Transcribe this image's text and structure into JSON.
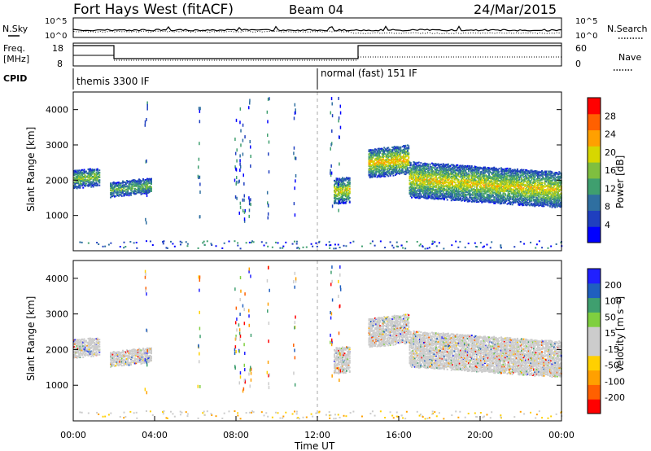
{
  "header": {
    "title": "Fort Hays West (fitACF)",
    "beam": "Beam 04",
    "date": "24/Mar/2015"
  },
  "noise_panel": {
    "left_label": "N.Sky",
    "right_label": "N.Search",
    "ticks": [
      "10^5",
      "10^0"
    ],
    "right_ticks": [
      "10^5",
      "10^0"
    ]
  },
  "freq_panel": {
    "left_label_line1": "Freq.",
    "left_label_line2": "[MHz]",
    "right_label": "Nave",
    "left_ticks": [
      "18",
      "8"
    ],
    "right_ticks": [
      "60",
      "0"
    ]
  },
  "cpid": {
    "label": "CPID",
    "modes": [
      {
        "name": "themis 3300 IF",
        "start_hour": 0
      },
      {
        "name": "normal (fast) 151 IF",
        "start_hour": 12
      }
    ]
  },
  "colors": {
    "power_scale": [
      "#0000ff",
      "#1f3fbf",
      "#2f6fa0",
      "#3f9f6f",
      "#7fbf3f",
      "#d7d700",
      "#ffa000",
      "#ff6000",
      "#ff0000"
    ],
    "velocity_scale": [
      "#ff0000",
      "#ff6000",
      "#ffa000",
      "#ffd000",
      "#cccccc",
      "#cccccc",
      "#7fcf3f",
      "#3f9f6f",
      "#1f5fbf",
      "#2020ff"
    ]
  },
  "chart_data": [
    {
      "type": "heatmap",
      "name": "power",
      "ylabel": "Slant Range [km]",
      "xlabel": "",
      "x_range_hours": [
        0,
        24
      ],
      "ylim": [
        0,
        4500
      ],
      "yticks": [
        "1000",
        "2000",
        "3000",
        "4000"
      ],
      "colorbar": {
        "label": "Power [dB]",
        "ticks": [
          "4",
          "8",
          "12",
          "16",
          "20",
          "24",
          "28"
        ],
        "range": [
          0,
          30
        ]
      },
      "echo_regions": [
        {
          "start_hour": 0.0,
          "end_hour": 1.3,
          "center_km": 2050,
          "half_width_km": 250,
          "center_value": 12
        },
        {
          "start_hour": 1.8,
          "end_hour": 3.8,
          "center_km": 1750,
          "half_width_km": 200,
          "center_value": 10
        },
        {
          "start_hour": 12.8,
          "end_hour": 13.6,
          "center_km": 1700,
          "half_width_km": 350,
          "center_value": 16
        },
        {
          "start_hour": 14.5,
          "end_hour": 16.5,
          "center_km": 2500,
          "half_width_km": 400,
          "center_value": 18
        },
        {
          "start_hour": 16.5,
          "end_hour": 24.0,
          "center_km": 2050,
          "half_width_km": 500,
          "center_value": 16
        }
      ]
    },
    {
      "type": "heatmap",
      "name": "velocity",
      "ylabel": "Slant Range [km]",
      "xlabel": "Time UT",
      "x_range_hours": [
        0,
        24
      ],
      "ylim": [
        0,
        4500
      ],
      "yticks": [
        "1000",
        "2000",
        "3000",
        "4000"
      ],
      "xticks": [
        "00:00",
        "04:00",
        "08:00",
        "12:00",
        "16:00",
        "20:00",
        "00:00"
      ],
      "colorbar": {
        "label": "Velocity [m s⁻¹]",
        "ticks": [
          "200",
          "100",
          "50",
          "15",
          "-15",
          "-50",
          "-100",
          "-200"
        ],
        "range": [
          -250,
          250
        ]
      }
    }
  ]
}
